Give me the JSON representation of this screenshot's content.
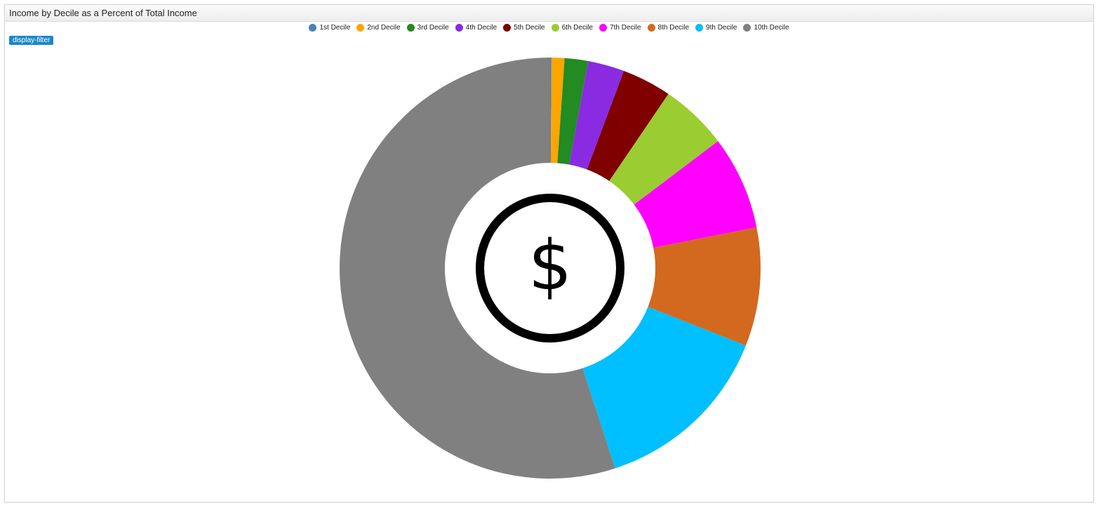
{
  "panel": {
    "title": "Income by Decile as a Percent of Total Income",
    "filter_label": "display-filter"
  },
  "chart_data": {
    "type": "pie",
    "title": "Income by Decile as a Percent of Total Income",
    "donut": true,
    "center_icon": "dollar-icon",
    "legend_position": "top",
    "categories": [
      "1st Decile",
      "2nd Decile",
      "3rd Decile",
      "4th Decile",
      "5th Decile",
      "6th Decile",
      "7th Decile",
      "8th Decile",
      "9th Decile",
      "10th Decile"
    ],
    "values": [
      0.1,
      1.0,
      1.8,
      2.8,
      3.8,
      5.2,
      7.2,
      9.1,
      14.0,
      55.0
    ],
    "colors": [
      "#4682b4",
      "#ffa500",
      "#228b22",
      "#8a2be2",
      "#800000",
      "#9acd32",
      "#ff00ff",
      "#d2691e",
      "#00bfff",
      "#808080"
    ]
  }
}
